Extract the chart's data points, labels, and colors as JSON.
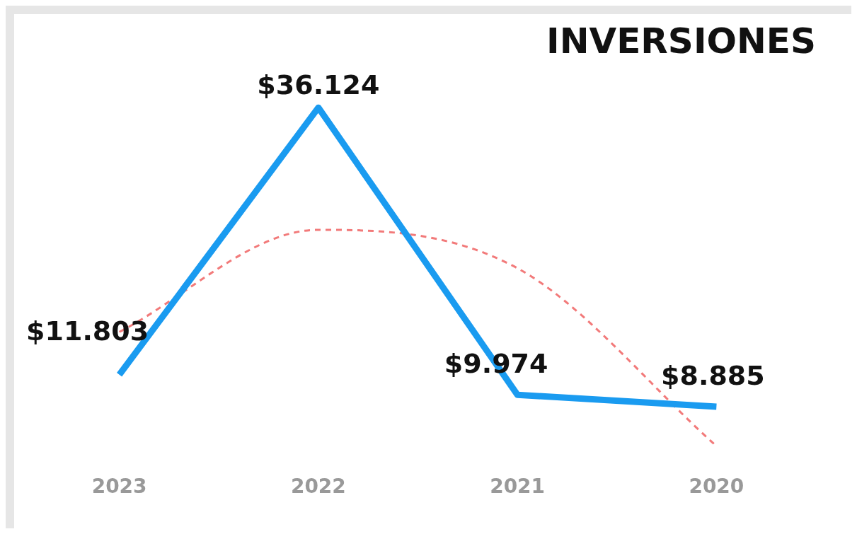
{
  "chart_data": {
    "type": "line",
    "title": "INVERSIONES",
    "categories": [
      "2023",
      "2022",
      "2021",
      "2020"
    ],
    "tick_labels": "x",
    "legend": false,
    "line_style": "solid",
    "marker": "none",
    "series": [
      {
        "color": "#1a9bf0",
        "values": [
          11.803,
          36.124,
          9.974,
          8.885
        ],
        "value_labels": [
          "$11.803",
          "$36.124",
          "$9.974",
          "$8.885"
        ]
      },
      {
        "type": "line",
        "color": "#f27a7a",
        "line_style": "dashed",
        "values": [
          15.7,
          25.0,
          21.5,
          5.3
        ]
      }
    ]
  }
}
